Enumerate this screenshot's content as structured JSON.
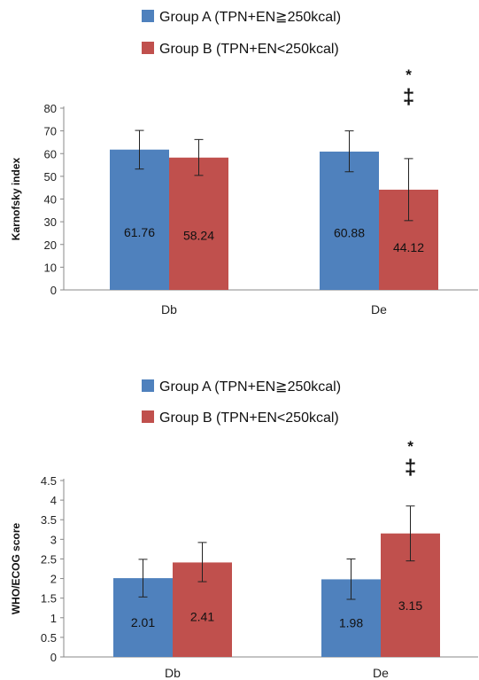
{
  "colors": {
    "group_a": "#4F81BD",
    "group_b": "#C0504D",
    "axis": "#888888",
    "error": "#222222"
  },
  "chart_data": [
    {
      "type": "bar",
      "ylabel": "Karnofsky index",
      "ylim": [
        0,
        80
      ],
      "ticks": [
        "0",
        "10",
        "20",
        "30",
        "40",
        "50",
        "60",
        "70",
        "80"
      ],
      "tick_values": [
        0,
        10,
        20,
        30,
        40,
        50,
        60,
        70,
        80
      ],
      "categories": [
        "Db",
        "De"
      ],
      "legend": {
        "placement": "top",
        "entries": [
          "Group A (TPN+EN≧250kcal)",
          "Group B (TPN+EN<250kcal)"
        ]
      },
      "series": [
        {
          "name": "Group A (TPN+EN≧250kcal)",
          "values": [
            61.76,
            60.88
          ],
          "labels": [
            "61.76",
            "60.88"
          ],
          "error_low": [
            53.2,
            52.0
          ],
          "error_high": [
            70.2,
            70.0
          ]
        },
        {
          "name": "Group B (TPN+EN<250kcal)",
          "values": [
            58.24,
            44.12
          ],
          "labels": [
            "58.24",
            "44.12"
          ],
          "error_low": [
            50.4,
            30.5
          ],
          "error_high": [
            66.2,
            57.8
          ]
        }
      ],
      "annotations": {
        "star": "*",
        "dagger": "‡",
        "category_index": 1
      }
    },
    {
      "type": "bar",
      "ylabel": "WHO/ECOG score",
      "ylim": [
        0,
        4.5
      ],
      "ticks": [
        "0",
        "0.5",
        "1",
        "1.5",
        "2",
        "2.5",
        "3",
        "3.5",
        "4",
        "4.5"
      ],
      "tick_values": [
        0,
        0.5,
        1,
        1.5,
        2,
        2.5,
        3,
        3.5,
        4,
        4.5
      ],
      "categories": [
        "Db",
        "De"
      ],
      "legend": {
        "placement": "top",
        "entries": [
          "Group A (TPN+EN≧250kcal)",
          "Group B (TPN+EN<250kcal)"
        ]
      },
      "series": [
        {
          "name": "Group A (TPN+EN≧250kcal)",
          "values": [
            2.01,
            1.98
          ],
          "labels": [
            "2.01",
            "1.98"
          ],
          "error_low": [
            1.53,
            1.47
          ],
          "error_high": [
            2.49,
            2.5
          ]
        },
        {
          "name": "Group B (TPN+EN<250kcal)",
          "values": [
            2.41,
            3.15
          ],
          "labels": [
            "2.41",
            "3.15"
          ],
          "error_low": [
            1.92,
            2.45
          ],
          "error_high": [
            2.92,
            3.85
          ]
        }
      ],
      "annotations": {
        "star": "*",
        "dagger": "‡",
        "category_index": 1
      }
    }
  ]
}
